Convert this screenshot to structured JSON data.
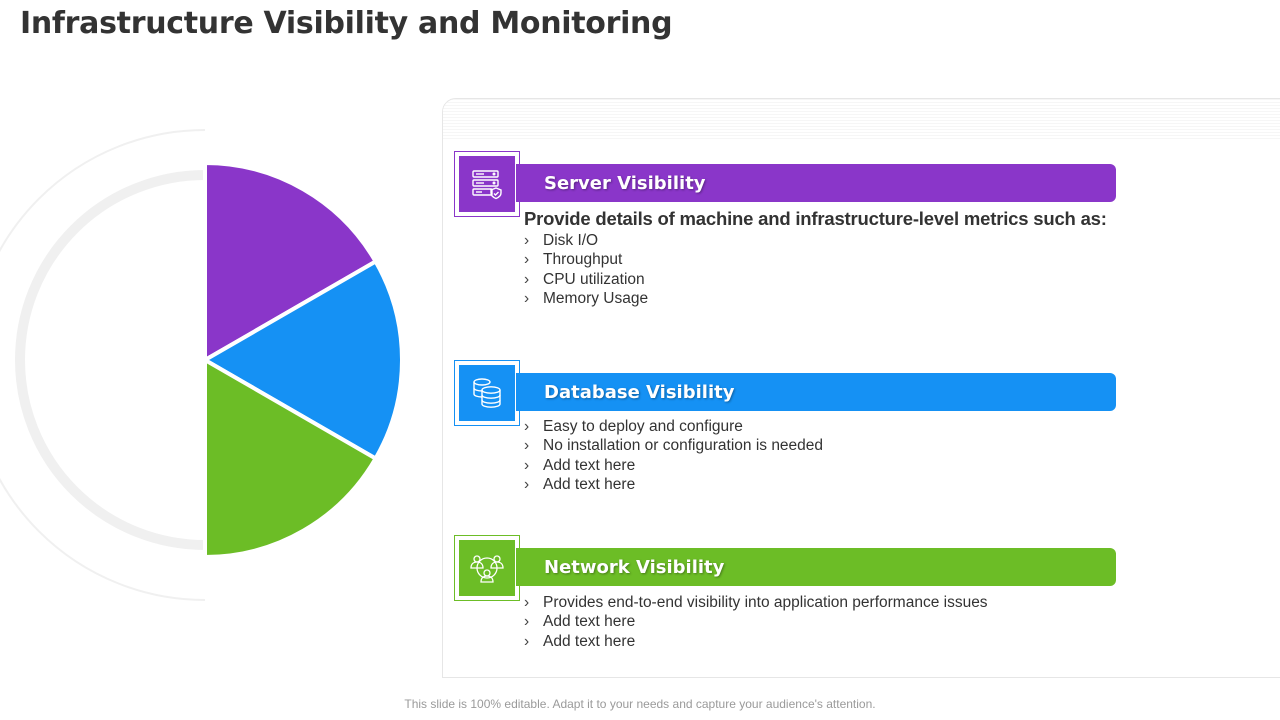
{
  "title": "Infrastructure Visibility and Monitoring",
  "colors": {
    "purple": "#8a36c9",
    "blue": "#1591f4",
    "green": "#6cbd26",
    "ring": "#f0f0f0"
  },
  "chart_data": {
    "type": "pie",
    "slices": [
      {
        "color": "#8a36c9",
        "value": 1
      },
      {
        "color": "#1591f4",
        "value": 1
      },
      {
        "color": "#6cbd26",
        "value": 1
      }
    ]
  },
  "sections": [
    {
      "id": "server",
      "title": "Server Visibility",
      "icon": "server-icon",
      "color": "#8a36c9",
      "lead": "Provide details of  machine and infrastructure-level metrics such as:",
      "items": [
        "Disk I/O",
        "Throughput",
        "CPU utilization",
        "Memory Usage"
      ]
    },
    {
      "id": "database",
      "title": "Database  Visibility",
      "icon": "database-icon",
      "color": "#1591f4",
      "items": [
        "Easy to deploy and configure",
        "No installation or configuration is needed",
        "Add text here",
        "Add text here"
      ]
    },
    {
      "id": "network",
      "title": "Network  Visibility",
      "icon": "network-users-icon",
      "color": "#6cbd26",
      "items": [
        "Provides end-to-end visibility into application performance issues",
        "Add text here",
        "Add text here"
      ]
    }
  ],
  "bullet_glyph": "›",
  "footer": "This slide is 100% editable. Adapt it to your needs and capture your audience's attention."
}
